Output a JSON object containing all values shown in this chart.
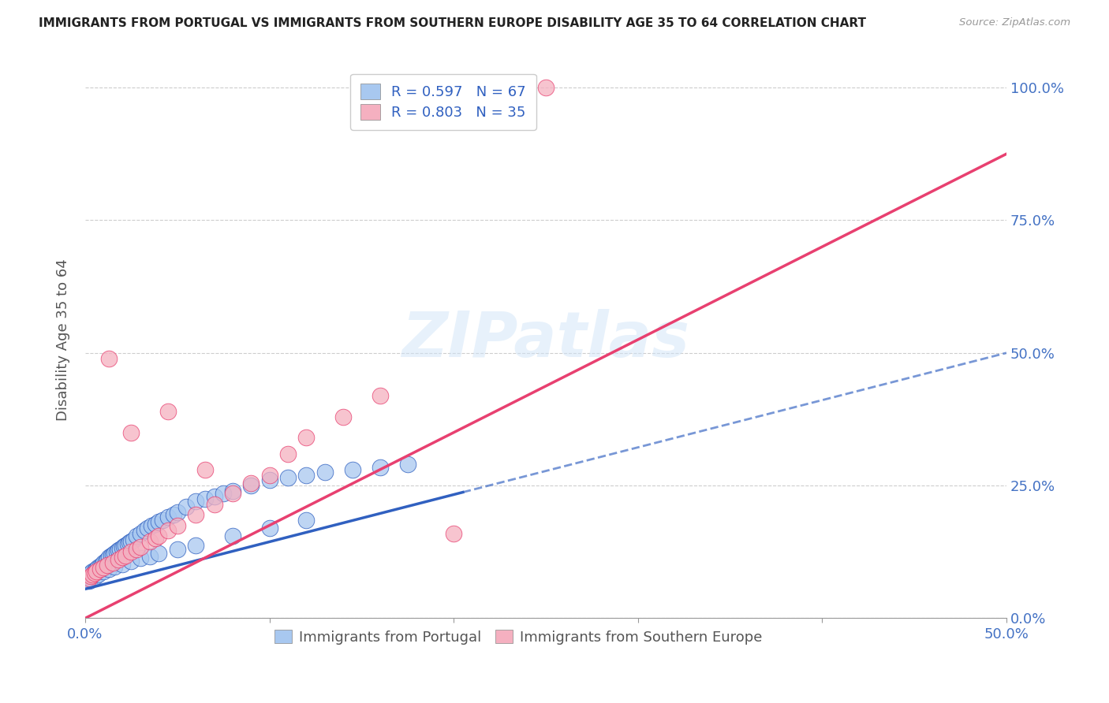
{
  "title": "IMMIGRANTS FROM PORTUGAL VS IMMIGRANTS FROM SOUTHERN EUROPE DISABILITY AGE 35 TO 64 CORRELATION CHART",
  "source": "Source: ZipAtlas.com",
  "ylabel": "Disability Age 35 to 64",
  "xlim": [
    0.0,
    0.5
  ],
  "ylim": [
    0.0,
    1.05
  ],
  "xticks": [
    0.0,
    0.1,
    0.2,
    0.3,
    0.4,
    0.5
  ],
  "ytick_positions": [
    0.0,
    0.25,
    0.5,
    0.75,
    1.0
  ],
  "ytick_labels_right": [
    "0.0%",
    "25.0%",
    "50.0%",
    "75.0%",
    "100.0%"
  ],
  "R_portugal": 0.597,
  "N_portugal": 67,
  "R_southern": 0.803,
  "N_southern": 35,
  "color_portugal": "#a8c8f0",
  "color_southern": "#f5b0c0",
  "color_portugal_line": "#3060c0",
  "color_southern_line": "#e84070",
  "watermark_text": "ZIPatlas",
  "portugal_line_solid_end": 0.205,
  "portugal_line_x0": 0.0,
  "portugal_line_y0": 0.055,
  "portugal_line_x1": 0.5,
  "portugal_line_y1": 0.5,
  "southern_line_x0": 0.0,
  "southern_line_y0": 0.0,
  "southern_line_x1": 0.5,
  "southern_line_y1": 0.875,
  "portugal_x": [
    0.002,
    0.003,
    0.004,
    0.005,
    0.006,
    0.007,
    0.008,
    0.009,
    0.01,
    0.011,
    0.012,
    0.013,
    0.014,
    0.015,
    0.016,
    0.017,
    0.018,
    0.019,
    0.02,
    0.021,
    0.022,
    0.023,
    0.024,
    0.025,
    0.026,
    0.028,
    0.03,
    0.032,
    0.034,
    0.036,
    0.038,
    0.04,
    0.042,
    0.045,
    0.048,
    0.05,
    0.055,
    0.06,
    0.065,
    0.07,
    0.075,
    0.08,
    0.09,
    0.1,
    0.11,
    0.12,
    0.13,
    0.145,
    0.16,
    0.175,
    0.002,
    0.003,
    0.005,
    0.007,
    0.01,
    0.013,
    0.016,
    0.02,
    0.025,
    0.03,
    0.035,
    0.04,
    0.05,
    0.06,
    0.08,
    0.1,
    0.12
  ],
  "portugal_y": [
    0.08,
    0.085,
    0.088,
    0.09,
    0.092,
    0.095,
    0.098,
    0.1,
    0.105,
    0.108,
    0.11,
    0.115,
    0.118,
    0.12,
    0.122,
    0.125,
    0.128,
    0.13,
    0.133,
    0.136,
    0.138,
    0.14,
    0.143,
    0.145,
    0.148,
    0.155,
    0.16,
    0.165,
    0.17,
    0.175,
    0.178,
    0.182,
    0.185,
    0.19,
    0.195,
    0.2,
    0.21,
    0.22,
    0.225,
    0.23,
    0.235,
    0.24,
    0.25,
    0.26,
    0.265,
    0.27,
    0.275,
    0.28,
    0.285,
    0.29,
    0.07,
    0.075,
    0.078,
    0.082,
    0.088,
    0.093,
    0.097,
    0.102,
    0.108,
    0.113,
    0.117,
    0.122,
    0.13,
    0.138,
    0.155,
    0.17,
    0.185
  ],
  "southern_x": [
    0.002,
    0.003,
    0.004,
    0.005,
    0.006,
    0.008,
    0.01,
    0.012,
    0.015,
    0.018,
    0.02,
    0.022,
    0.025,
    0.028,
    0.03,
    0.035,
    0.038,
    0.04,
    0.045,
    0.05,
    0.06,
    0.07,
    0.08,
    0.09,
    0.1,
    0.11,
    0.12,
    0.14,
    0.16,
    0.2,
    0.013,
    0.025,
    0.045,
    0.065,
    0.25
  ],
  "southern_y": [
    0.075,
    0.08,
    0.082,
    0.085,
    0.088,
    0.092,
    0.095,
    0.1,
    0.105,
    0.11,
    0.115,
    0.118,
    0.125,
    0.13,
    0.135,
    0.145,
    0.15,
    0.155,
    0.165,
    0.175,
    0.195,
    0.215,
    0.235,
    0.255,
    0.27,
    0.31,
    0.34,
    0.38,
    0.42,
    0.16,
    0.49,
    0.35,
    0.39,
    0.28,
    1.0
  ]
}
